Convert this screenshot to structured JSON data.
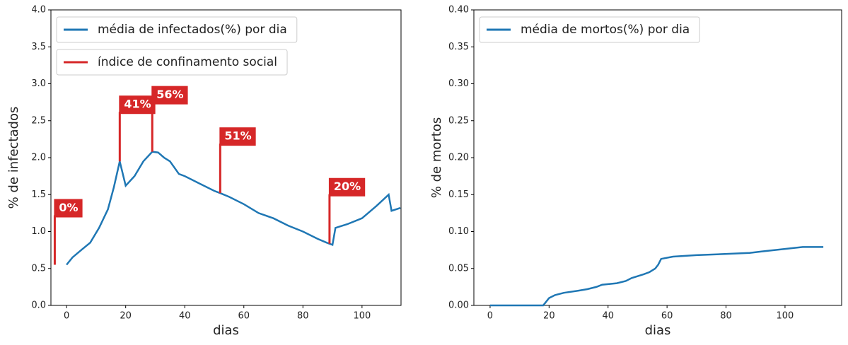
{
  "chart_data": [
    {
      "type": "line",
      "xlabel": "dias",
      "ylabel": "% de infectados",
      "xlim": [
        -5.3,
        113.2
      ],
      "ylim": [
        0,
        4.0
      ],
      "xticks": [
        0,
        20,
        40,
        60,
        80,
        100
      ],
      "yticks": [
        {
          "value": 0,
          "label": "0.0"
        },
        0.5,
        {
          "value": 1,
          "label": "1.0"
        },
        1.5,
        {
          "value": 2,
          "label": "2.0"
        },
        2.5,
        {
          "value": 3,
          "label": "3.0"
        },
        3.5,
        {
          "value": 4,
          "label": "4.0"
        }
      ],
      "legend": "upper left",
      "series": [
        {
          "name": "média de infectados(%) por dia",
          "color": "#1f77b4",
          "x": [
            0,
            2,
            5,
            8,
            11,
            14,
            16,
            18,
            20,
            23,
            26,
            29,
            31,
            33,
            35,
            38,
            40,
            45,
            50,
            52,
            55,
            60,
            65,
            70,
            75,
            80,
            85,
            88,
            90,
            91,
            95,
            100,
            105,
            109,
            110,
            113
          ],
          "values": [
            0.55,
            0.65,
            0.75,
            0.85,
            1.05,
            1.3,
            1.6,
            1.95,
            1.62,
            1.75,
            1.95,
            2.08,
            2.07,
            2.0,
            1.95,
            1.78,
            1.75,
            1.65,
            1.55,
            1.52,
            1.47,
            1.37,
            1.25,
            1.18,
            1.08,
            1.0,
            0.9,
            0.85,
            0.82,
            1.05,
            1.1,
            1.18,
            1.35,
            1.5,
            1.28,
            1.32
          ]
        }
      ],
      "markers": {
        "name": "índice de confinamento social",
        "color": "#d62728",
        "x": [
          -4,
          18,
          29,
          52,
          89
        ],
        "values": [
          0,
          41,
          56,
          51,
          20
        ],
        "value_labels": [
          "0%",
          "41%",
          "56%",
          "51%",
          "20%"
        ]
      }
    },
    {
      "type": "line",
      "xlabel": "dias",
      "ylabel": "% de mortos",
      "xlim": [
        -5.5,
        119.2
      ],
      "ylim": [
        0,
        0.4
      ],
      "xticks": [
        0,
        20,
        40,
        60,
        80,
        100
      ],
      "yticks": [
        {
          "value": 0,
          "label": "0.00"
        },
        0.05,
        {
          "value": 0.1,
          "label": "0.10"
        },
        0.15,
        {
          "value": 0.2,
          "label": "0.20"
        },
        0.25,
        {
          "value": 0.3,
          "label": "0.30"
        },
        0.35,
        {
          "value": 0.4,
          "label": "0.40"
        }
      ],
      "legend": "upper left",
      "series": [
        {
          "name": "média de mortos(%) por dia",
          "color": "#1f77b4",
          "x": [
            0,
            18,
            19,
            20,
            22,
            25,
            30,
            33,
            36,
            38,
            43,
            46,
            48,
            52,
            54,
            56,
            57,
            58,
            62,
            70,
            88,
            92,
            106,
            113
          ],
          "values": [
            0,
            0,
            0.005,
            0.01,
            0.014,
            0.017,
            0.02,
            0.022,
            0.025,
            0.028,
            0.03,
            0.033,
            0.037,
            0.042,
            0.045,
            0.05,
            0.055,
            0.063,
            0.066,
            0.068,
            0.071,
            0.073,
            0.079,
            0.079
          ]
        }
      ]
    }
  ]
}
